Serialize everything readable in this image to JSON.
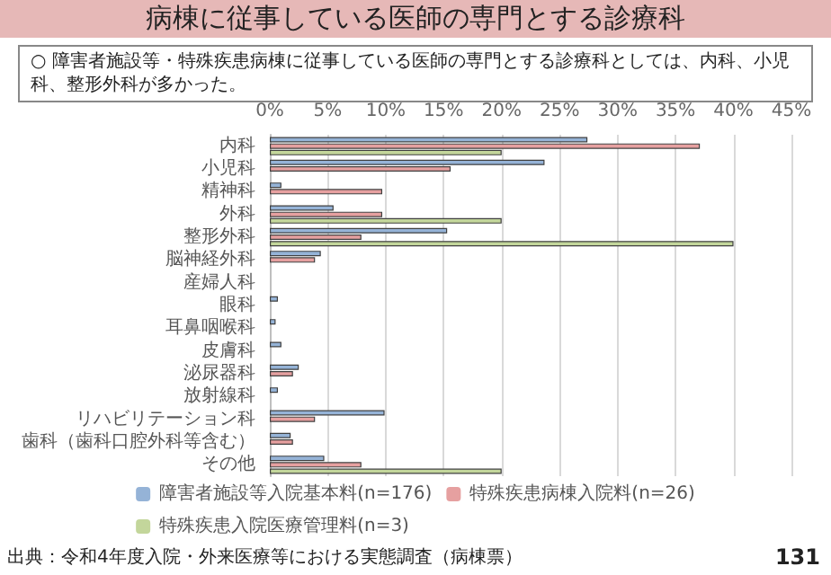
{
  "chart_data": {
    "type": "bar",
    "orientation": "horizontal",
    "title": "病棟に従事している医師の専門とする診療科",
    "subtitle": "○ 障害者施設等・特殊疾患病棟に従事している医師の専門とする診療科としては、内科、小児科、整形外科が多かった。",
    "categories": [
      "内科",
      "小児科",
      "精神科",
      "外科",
      "整形外科",
      "脳神経外科",
      "産婦人科",
      "眼科",
      "耳鼻咽喉科",
      "皮膚科",
      "泌尿器科",
      "放射線科",
      "リハビリテーション科",
      "歯科（歯科口腔外科等含む）",
      "その他"
    ],
    "series": [
      {
        "name": "障害者施設等入院基本料(n=176)",
        "color": "#95b3d7",
        "values": [
          27.4,
          23.7,
          1.0,
          5.5,
          15.3,
          4.4,
          0,
          0.7,
          0.5,
          1.0,
          2.5,
          0.7,
          9.9,
          1.8,
          4.7
        ]
      },
      {
        "name": "特殊疾患病棟入院料(n=26)",
        "color": "#e6a0a0",
        "values": [
          37.1,
          15.6,
          9.7,
          9.7,
          7.9,
          3.9,
          0,
          0,
          0,
          0,
          2.0,
          0,
          3.9,
          2.0,
          7.9
        ]
      },
      {
        "name": "特殊疾患入院医療管理料(n=3)",
        "color": "#c3d69b",
        "values": [
          20.0,
          0,
          0,
          20.0,
          40.0,
          0,
          0,
          0,
          0,
          0,
          0,
          0,
          0,
          0,
          20.0
        ]
      }
    ],
    "xlim": [
      0,
      45
    ],
    "xticks": [
      {
        "value": 0,
        "label": "0%"
      },
      {
        "value": 5,
        "label": "5%"
      },
      {
        "value": 10,
        "label": "10%"
      },
      {
        "value": 15,
        "label": "15%"
      },
      {
        "value": 20,
        "label": "20%"
      },
      {
        "value": 25,
        "label": "25%"
      },
      {
        "value": 30,
        "label": "30%"
      },
      {
        "value": 35,
        "label": "35%"
      },
      {
        "value": 40,
        "label": "40%"
      },
      {
        "value": 45,
        "label": "45%"
      }
    ],
    "grid": "x",
    "legend": "bottom",
    "annotations": [
      "出典：令和4年度入院・外来医療等における実態調査（病棟票）",
      "131"
    ]
  }
}
